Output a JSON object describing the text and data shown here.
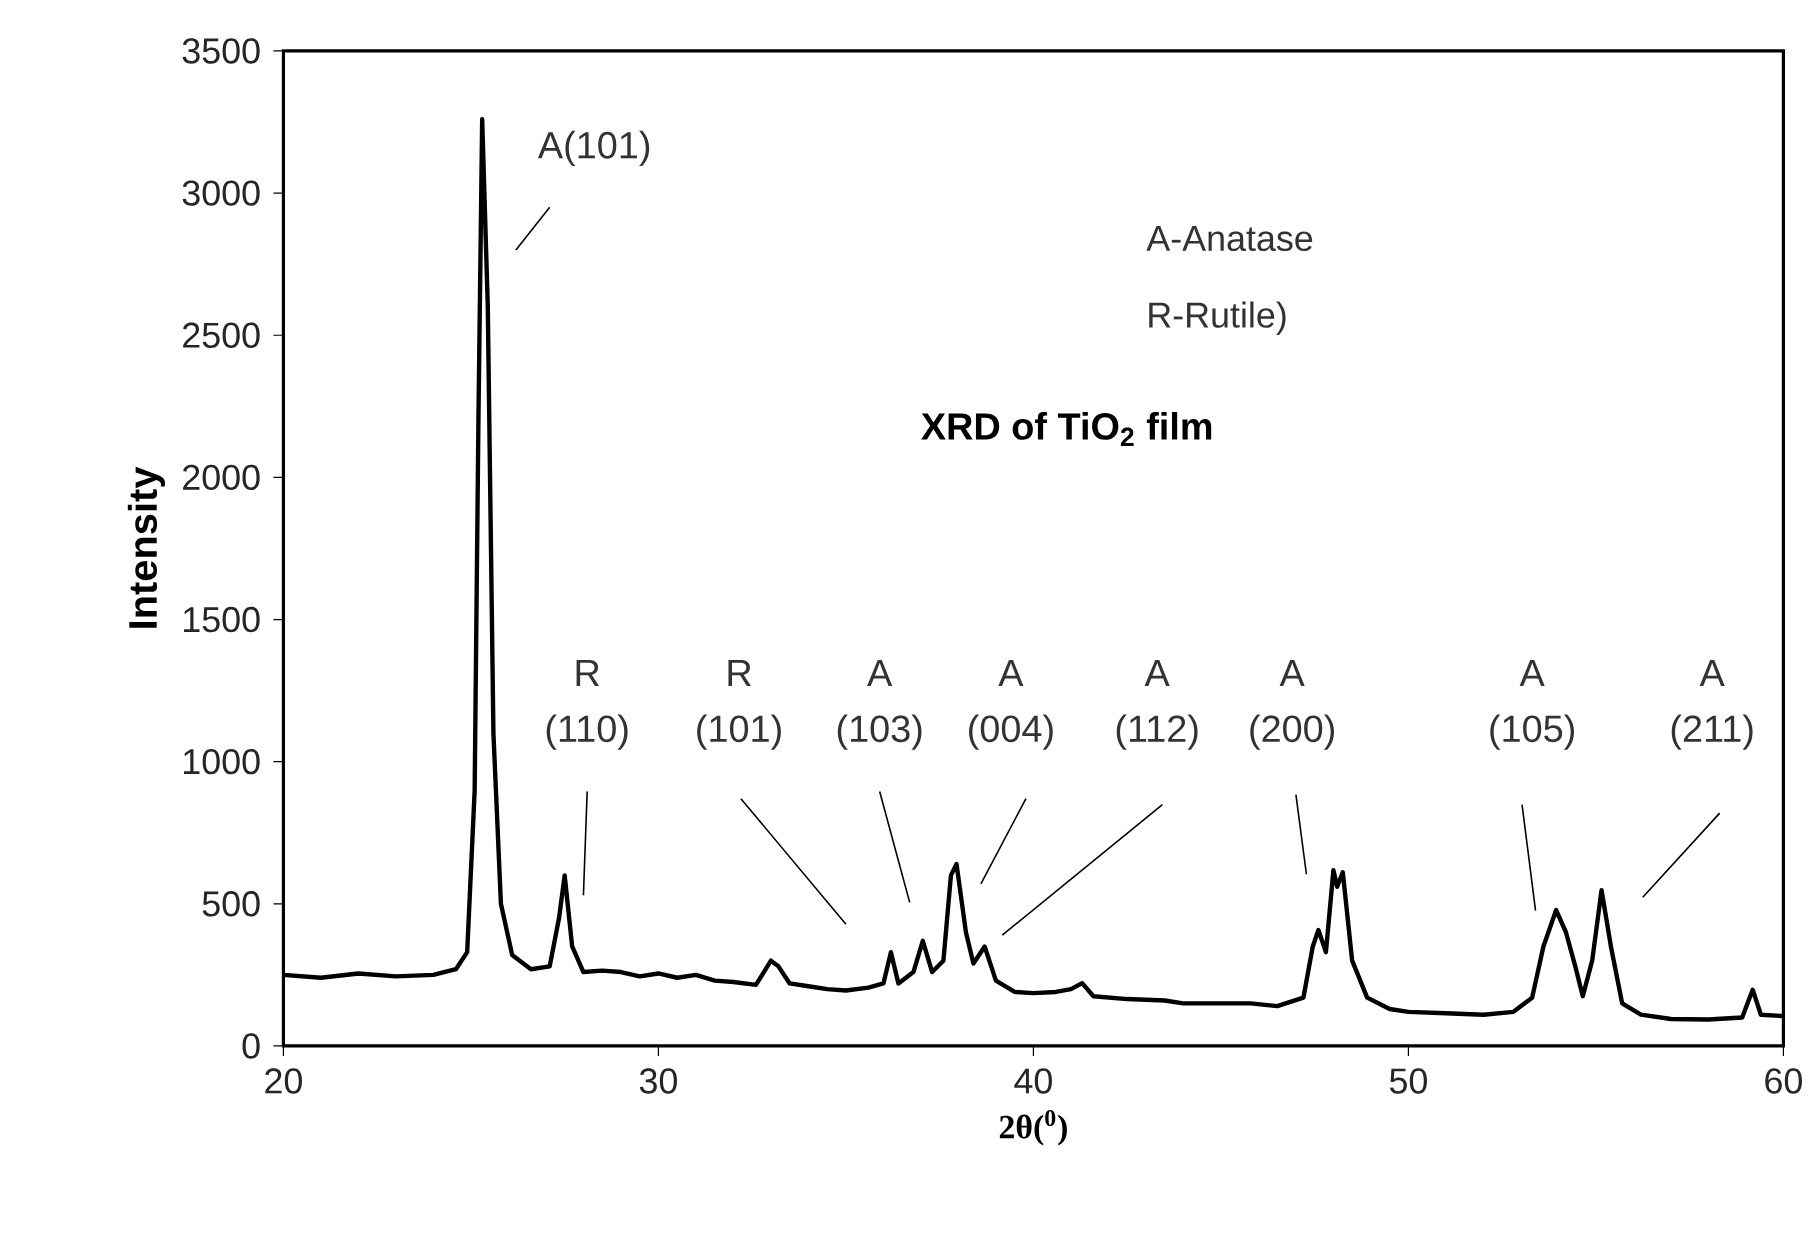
{
  "chart_data": {
    "type": "line",
    "title": "XRD of TiO$_{2}$ film",
    "xlabel": "2θ($^{0}$)",
    "ylabel": "Intensity",
    "xlim": [
      20,
      60
    ],
    "ylim": [
      0,
      3500
    ],
    "xticks": [
      20,
      30,
      40,
      50,
      60
    ],
    "yticks": [
      0,
      500,
      1000,
      1500,
      2000,
      2500,
      3000,
      3500
    ],
    "series": [
      {
        "color": "#000000",
        "x": [
          20,
          21,
          22,
          23,
          24,
          24.6,
          24.9,
          25.1,
          25.2,
          25.3,
          25.45,
          25.6,
          25.8,
          26.1,
          26.6,
          27.1,
          27.35,
          27.5,
          27.7,
          28.0,
          28.5,
          29,
          29.5,
          30,
          30.5,
          31,
          31.5,
          32,
          32.6,
          33.0,
          33.2,
          33.5,
          34,
          34.5,
          35,
          35.6,
          36.0,
          36.2,
          36.4,
          36.8,
          37.05,
          37.3,
          37.6,
          37.8,
          37.95,
          38.2,
          38.4,
          38.7,
          39.0,
          39.5,
          40,
          40.6,
          41.0,
          41.3,
          41.6,
          42.5,
          43.5,
          44,
          45,
          45.8,
          46.5,
          47.2,
          47.45,
          47.6,
          47.8,
          48.0,
          48.1,
          48.25,
          48.5,
          48.9,
          49.5,
          50,
          51,
          52,
          52.8,
          53.3,
          53.6,
          53.94,
          54.2,
          54.45,
          54.65,
          54.9,
          55.15,
          55.4,
          55.7,
          56.2,
          57,
          58,
          58.9,
          59.18,
          59.4,
          60
        ],
        "values": [
          250,
          240,
          255,
          245,
          250,
          270,
          330,
          900,
          2200,
          3260,
          2600,
          1100,
          500,
          320,
          270,
          280,
          450,
          600,
          350,
          260,
          265,
          260,
          245,
          255,
          240,
          250,
          230,
          225,
          215,
          300,
          280,
          220,
          210,
          200,
          195,
          205,
          220,
          330,
          220,
          260,
          370,
          260,
          300,
          600,
          640,
          400,
          290,
          350,
          230,
          190,
          186,
          190,
          200,
          221,
          175,
          165,
          160,
          150,
          150,
          150,
          140,
          170,
          350,
          408,
          330,
          618,
          560,
          611,
          300,
          170,
          130,
          120,
          115,
          110,
          120,
          170,
          350,
          478,
          400,
          280,
          175,
          300,
          548,
          350,
          150,
          110,
          95,
          93,
          100,
          198,
          110,
          105
        ]
      }
    ],
    "annotations": [
      "A(101)",
      "R (110)",
      "R (101)",
      "A (103)",
      "A (004)",
      "A (112)",
      "A (200)",
      "A (105)",
      "A (211)",
      "A-Anatase",
      "R-Rutile)"
    ]
  }
}
